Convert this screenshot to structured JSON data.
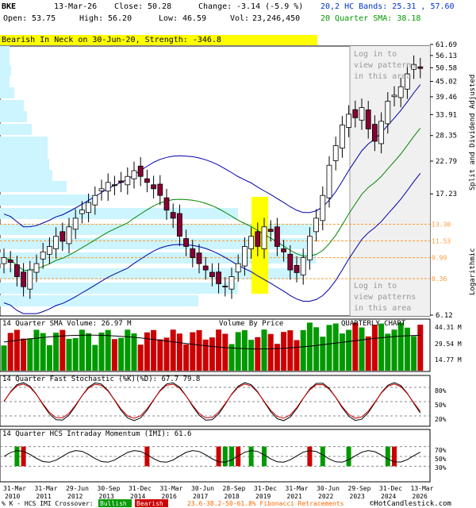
{
  "header": {
    "symbol": "BKE",
    "date": "13-Mar-26",
    "close_label": "Close:",
    "close": "50.28",
    "change_label": "Change:",
    "change": "-3.14 (-5.9 %)",
    "open_label": "Open:",
    "open": "53.75",
    "high_label": "High:",
    "high": "56.20",
    "low_label": "Low:",
    "low": "46.59",
    "vol_label": "Vol:",
    "vol": "23,246,450",
    "bands_label": "20,2 HC Bands: 25.31 , 57.60",
    "sma_label": "20 Quarter SMA: 38.18"
  },
  "pattern": "Bearish In Neck on 30-Jun-20, Strength: -346.8",
  "price_panel": {
    "login_top": [
      "Log in to",
      "view patterns",
      "in this area"
    ],
    "login_bottom": [
      "Log in to",
      "view patterns",
      "in this area"
    ],
    "y_label_right": "Split and Dividend Adjusted",
    "scale_label": "Logarithmic"
  },
  "volume_panel": {
    "title": "14 Quarter SMA Volume: 26.97 M",
    "vbp_label": "Volume By Price",
    "chart_label": "QUARTERLY CHART",
    "ticks": [
      "44.31 M",
      "29.54 M",
      "14.77 M"
    ]
  },
  "stoch_panel": {
    "title": "14 Quarter Fast Stochastic (%K)(%D): 67.7  79.8",
    "ticks": [
      "80%",
      "50%",
      "20%"
    ]
  },
  "imi_panel": {
    "title": "14 Quarter HCS Intraday Momentum (IMI): 61.6",
    "ticks": [
      "70%",
      "50%",
      "30%"
    ]
  },
  "footer": {
    "legend_prefix": "% K - HCS IMI Crossover:",
    "bullish": "Bullish",
    "bearish": "Bearish",
    "fib": "23.6-38.2-50-61.8% Fibonacci Retracements",
    "brand": "©HotCandlestick.com"
  },
  "colors": {
    "bull": "#009900",
    "bear": "#cc0000",
    "candle_bear": "#880033",
    "band": "#0000aa",
    "sma": "#008800",
    "vbp": "#ccf5ff",
    "fib": "#ff9933"
  },
  "chart_data": {
    "type": "candlestick",
    "title": "BKE QUARTERLY CHART",
    "scale": "log",
    "y_ticks": [
      61.69,
      56.13,
      50.58,
      45.02,
      39.46,
      33.91,
      28.35,
      22.79,
      17.23,
      6.12
    ],
    "fib_levels": [
      13.3,
      11.53,
      9.99,
      8.36
    ],
    "x_ticks": [
      "31-Mar 2010",
      "31-Mar 2011",
      "29-Jun 2012",
      "30-Sep 2013",
      "31-Dec 2014",
      "31-Mar 2016",
      "30-Jun 2017",
      "28-Sep 2018",
      "31-Dec 2019",
      "31-Mar 2021",
      "30-Jun 2022",
      "29-Sep 2023",
      "31-Dec 2024",
      "13-Mar 2026"
    ],
    "last_quarter": {
      "open": 53.75,
      "high": 56.2,
      "low": 46.59,
      "close": 50.28,
      "volume": 23246450
    }
  }
}
